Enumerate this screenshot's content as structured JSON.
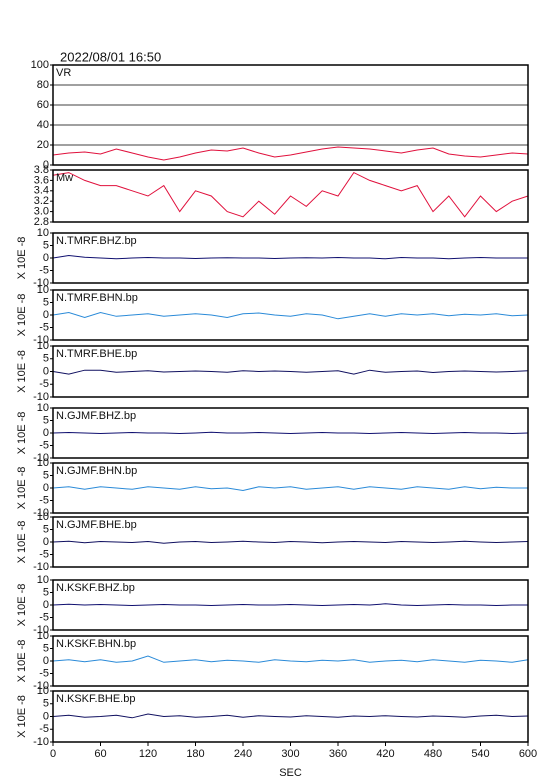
{
  "title": "2022/08/01  16:50",
  "chart_data": [
    {
      "type": "line",
      "title": "VR",
      "color": "#e0103c",
      "grid": true,
      "xlim": [
        0,
        600
      ],
      "ylim": [
        0,
        100
      ],
      "yticks": [
        0,
        20,
        40,
        60,
        80,
        100
      ],
      "x": [
        0,
        20,
        40,
        60,
        80,
        100,
        120,
        140,
        160,
        180,
        200,
        220,
        240,
        260,
        280,
        300,
        320,
        340,
        360,
        380,
        400,
        420,
        440,
        460,
        480,
        500,
        520,
        540,
        560,
        580,
        600
      ],
      "values": [
        10,
        12,
        13,
        11,
        16,
        12,
        8,
        5,
        8,
        12,
        15,
        14,
        17,
        12,
        8,
        10,
        13,
        16,
        18,
        17,
        16,
        14,
        12,
        15,
        17,
        11,
        9,
        8,
        10,
        12,
        11
      ]
    },
    {
      "type": "line",
      "title": "Mw",
      "color": "#e0103c",
      "xlim": [
        0,
        600
      ],
      "ylim": [
        2.8,
        3.8
      ],
      "yticks": [
        2.8,
        {
          "value": 3,
          "label": "3.0"
        },
        3.2,
        3.4,
        3.6,
        3.8
      ],
      "x": [
        0,
        20,
        40,
        60,
        80,
        100,
        120,
        140,
        160,
        180,
        200,
        220,
        240,
        260,
        280,
        300,
        320,
        340,
        360,
        380,
        400,
        420,
        440,
        460,
        480,
        500,
        520,
        540,
        560,
        580,
        600
      ],
      "values": [
        3.7,
        3.75,
        3.6,
        3.5,
        3.5,
        3.4,
        3.3,
        3.5,
        3.0,
        3.4,
        3.3,
        3.0,
        2.9,
        3.2,
        2.95,
        3.3,
        3.1,
        3.4,
        3.3,
        3.75,
        3.6,
        3.5,
        3.4,
        3.5,
        3.0,
        3.3,
        2.9,
        3.3,
        3.0,
        3.2,
        3.3
      ]
    },
    {
      "type": "line",
      "title": "N.TMRF.BHZ.bp",
      "ylabel": "X 10E -8",
      "color": "#101070",
      "xlim": [
        0,
        600
      ],
      "ylim": [
        -10,
        10
      ],
      "yticks": [
        -10,
        -5,
        0,
        5,
        10
      ],
      "x": [
        0,
        20,
        40,
        60,
        80,
        100,
        120,
        140,
        160,
        180,
        200,
        220,
        240,
        260,
        280,
        300,
        320,
        340,
        360,
        380,
        400,
        420,
        440,
        460,
        480,
        500,
        520,
        540,
        560,
        580,
        600
      ],
      "values": [
        0,
        1,
        0.3,
        0,
        -0.3,
        0,
        0.2,
        0,
        0,
        -0.2,
        0,
        0.1,
        0,
        0,
        -0.2,
        0,
        0.1,
        0,
        0.2,
        0,
        0,
        -0.3,
        0.2,
        0,
        0,
        -0.3,
        0,
        0.2,
        0,
        0,
        0
      ]
    },
    {
      "type": "line",
      "title": "N.TMRF.BHN.bp",
      "ylabel": "X 10E -8",
      "color": "#2a8ad8",
      "xlim": [
        0,
        600
      ],
      "ylim": [
        -10,
        10
      ],
      "yticks": [
        -10,
        -5,
        0,
        5,
        10
      ],
      "x": [
        0,
        20,
        40,
        60,
        80,
        100,
        120,
        140,
        160,
        180,
        200,
        220,
        240,
        260,
        280,
        300,
        320,
        340,
        360,
        380,
        400,
        420,
        440,
        460,
        480,
        500,
        520,
        540,
        560,
        580,
        600
      ],
      "values": [
        0,
        1,
        -1,
        1,
        -0.5,
        0,
        0.5,
        -0.5,
        0,
        0.5,
        0,
        -1,
        0.5,
        0.8,
        0,
        -0.5,
        0.5,
        0,
        -1.5,
        -0.5,
        0.5,
        -0.5,
        0.5,
        0,
        0.5,
        -0.3,
        0.3,
        0,
        0.5,
        -0.3,
        0
      ]
    },
    {
      "type": "line",
      "title": "N.TMRF.BHE.bp",
      "ylabel": "X 10E -8",
      "color": "#101060",
      "xlim": [
        0,
        600
      ],
      "ylim": [
        -10,
        10
      ],
      "yticks": [
        -10,
        -5,
        0,
        5,
        10
      ],
      "x": [
        0,
        20,
        40,
        60,
        80,
        100,
        120,
        140,
        160,
        180,
        200,
        220,
        240,
        260,
        280,
        300,
        320,
        340,
        360,
        380,
        400,
        420,
        440,
        460,
        480,
        500,
        520,
        540,
        560,
        580,
        600
      ],
      "values": [
        0,
        -1,
        0.5,
        0.5,
        -0.3,
        0,
        0.3,
        -0.2,
        0,
        0.2,
        0,
        -0.3,
        0.3,
        0,
        0.2,
        0,
        -0.3,
        0,
        0.3,
        -1,
        0.5,
        -0.3,
        0,
        0.2,
        -0.4,
        0,
        0.2,
        0,
        -0.2,
        0,
        0.3
      ]
    },
    {
      "type": "line",
      "title": "N.GJMF.BHZ.bp",
      "ylabel": "X 10E -8",
      "color": "#101070",
      "xlim": [
        0,
        600
      ],
      "ylim": [
        -10,
        10
      ],
      "yticks": [
        -10,
        -5,
        0,
        5,
        10
      ],
      "x": [
        0,
        20,
        40,
        60,
        80,
        100,
        120,
        140,
        160,
        180,
        200,
        220,
        240,
        260,
        280,
        300,
        320,
        340,
        360,
        380,
        400,
        420,
        440,
        460,
        480,
        500,
        520,
        540,
        560,
        580,
        600
      ],
      "values": [
        0,
        0.2,
        0,
        -0.2,
        0,
        0.2,
        0,
        0,
        -0.2,
        0,
        0.3,
        0,
        0,
        0.2,
        0,
        -0.2,
        0,
        0.2,
        0,
        0,
        -0.2,
        0,
        0.2,
        0,
        -0.2,
        0,
        0.2,
        0,
        0,
        -0.2,
        0
      ]
    },
    {
      "type": "line",
      "title": "N.GJMF.BHN.bp",
      "ylabel": "X 10E -8",
      "color": "#2a8ad8",
      "xlim": [
        0,
        600
      ],
      "ylim": [
        -10,
        10
      ],
      "yticks": [
        -10,
        -5,
        0,
        5,
        10
      ],
      "x": [
        0,
        20,
        40,
        60,
        80,
        100,
        120,
        140,
        160,
        180,
        200,
        220,
        240,
        260,
        280,
        300,
        320,
        340,
        360,
        380,
        400,
        420,
        440,
        460,
        480,
        500,
        520,
        540,
        560,
        580,
        600
      ],
      "values": [
        0,
        0.5,
        -0.5,
        0.5,
        0,
        -0.5,
        0.5,
        0,
        -0.5,
        0.5,
        -0.3,
        0,
        -1,
        0.5,
        0,
        0.5,
        -0.5,
        0,
        0.5,
        -0.5,
        0.5,
        0,
        -0.5,
        0.5,
        0,
        -0.5,
        0.5,
        -0.3,
        0.3,
        0,
        0
      ]
    },
    {
      "type": "line",
      "title": "N.GJMF.BHE.bp",
      "ylabel": "X 10E -8",
      "color": "#101060",
      "xlim": [
        0,
        600
      ],
      "ylim": [
        -10,
        10
      ],
      "yticks": [
        -10,
        -5,
        0,
        5,
        10
      ],
      "x": [
        0,
        20,
        40,
        60,
        80,
        100,
        120,
        140,
        160,
        180,
        200,
        220,
        240,
        260,
        280,
        300,
        320,
        340,
        360,
        380,
        400,
        420,
        440,
        460,
        480,
        500,
        520,
        540,
        560,
        580,
        600
      ],
      "values": [
        0,
        0.3,
        -0.3,
        0.2,
        0,
        -0.2,
        0.2,
        -0.5,
        0,
        0.2,
        -0.2,
        0,
        0.3,
        0,
        -0.2,
        0.2,
        0,
        -0.3,
        0,
        0.2,
        0,
        -0.2,
        0.2,
        0,
        -0.2,
        0,
        0.3,
        0,
        -0.2,
        0,
        0.2
      ]
    },
    {
      "type": "line",
      "title": "N.KSKF.BHZ.bp",
      "ylabel": "X 10E -8",
      "color": "#101070",
      "xlim": [
        0,
        600
      ],
      "ylim": [
        -10,
        10
      ],
      "yticks": [
        -10,
        -5,
        0,
        5,
        10
      ],
      "x": [
        0,
        20,
        40,
        60,
        80,
        100,
        120,
        140,
        160,
        180,
        200,
        220,
        240,
        260,
        280,
        300,
        320,
        340,
        360,
        380,
        400,
        420,
        440,
        460,
        480,
        500,
        520,
        540,
        560,
        580,
        600
      ],
      "values": [
        0,
        0.3,
        0,
        0.2,
        0,
        -0.2,
        0,
        0.2,
        0,
        0,
        -0.2,
        0,
        0.2,
        0,
        0,
        0.2,
        0,
        -0.2,
        0,
        0.2,
        0,
        0.5,
        0,
        -0.2,
        0,
        0.2,
        0,
        0,
        -0.2,
        0,
        0
      ]
    },
    {
      "type": "line",
      "title": "N.KSKF.BHN.bp",
      "ylabel": "X 10E -8",
      "color": "#2a8ad8",
      "xlim": [
        0,
        600
      ],
      "ylim": [
        -10,
        10
      ],
      "yticks": [
        -10,
        -5,
        0,
        5,
        10
      ],
      "x": [
        0,
        20,
        40,
        60,
        80,
        100,
        120,
        140,
        160,
        180,
        200,
        220,
        240,
        260,
        280,
        300,
        320,
        340,
        360,
        380,
        400,
        420,
        440,
        460,
        480,
        500,
        520,
        540,
        560,
        580,
        600
      ],
      "values": [
        0,
        0.5,
        -0.3,
        0.5,
        -0.5,
        0,
        2,
        -0.5,
        0,
        0.5,
        -0.3,
        0.3,
        0,
        -0.5,
        0.5,
        0,
        -0.3,
        0.3,
        0,
        0.5,
        -0.5,
        0,
        0.3,
        -0.3,
        0.5,
        0,
        -0.5,
        0.3,
        0,
        -0.5,
        0.5
      ]
    },
    {
      "type": "line",
      "title": "N.KSKF.BHE.bp",
      "ylabel": "X 10E -8",
      "color": "#101060",
      "xlim": [
        0,
        600
      ],
      "ylim": [
        -10,
        10
      ],
      "yticks": [
        -10,
        -5,
        0,
        5,
        10
      ],
      "x": [
        0,
        20,
        40,
        60,
        80,
        100,
        120,
        140,
        160,
        180,
        200,
        220,
        240,
        260,
        280,
        300,
        320,
        340,
        360,
        380,
        400,
        420,
        440,
        460,
        480,
        500,
        520,
        540,
        560,
        580,
        600
      ],
      "values": [
        0,
        0.5,
        -0.3,
        0,
        0.5,
        -0.5,
        1,
        0,
        0.3,
        -0.3,
        0,
        0.5,
        -0.3,
        0.3,
        0,
        -0.2,
        0.3,
        0,
        -0.3,
        0.2,
        0,
        0.3,
        0,
        -0.2,
        0.2,
        0,
        -0.3,
        0.2,
        0.5,
        0,
        0.2
      ],
      "xticks": [
        0,
        60,
        120,
        180,
        240,
        300,
        360,
        420,
        480,
        540,
        600
      ],
      "xlabel": "SEC"
    }
  ]
}
